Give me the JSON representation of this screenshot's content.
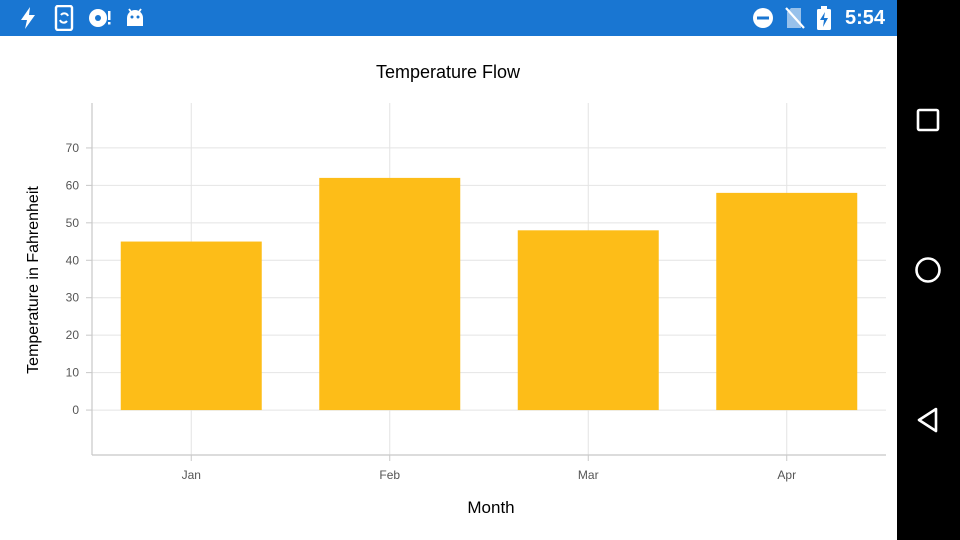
{
  "status_bar": {
    "time": "5:54",
    "left_icons": [
      "flash-icon",
      "phone-sync-icon",
      "storage-alert-icon",
      "android-icon"
    ],
    "right_icons": [
      "do-not-disturb-icon",
      "no-sim-icon",
      "battery-charging-icon"
    ],
    "background": "#1976d2"
  },
  "nav_bar": {
    "buttons": [
      "recents-button",
      "home-button",
      "back-button"
    ]
  },
  "chart_data": {
    "type": "bar",
    "title": "Temperature Flow",
    "xlabel": "Month",
    "ylabel": "Temperature in Fahrenheit",
    "categories": [
      "Jan",
      "Feb",
      "Mar",
      "Apr"
    ],
    "values": [
      45,
      62,
      48,
      58
    ],
    "ylim": [
      -12,
      82
    ],
    "yticks": [
      0,
      10,
      20,
      30,
      40,
      50,
      60,
      70
    ],
    "grid": true,
    "legend": "none",
    "bar_color": "#fdbd18"
  }
}
